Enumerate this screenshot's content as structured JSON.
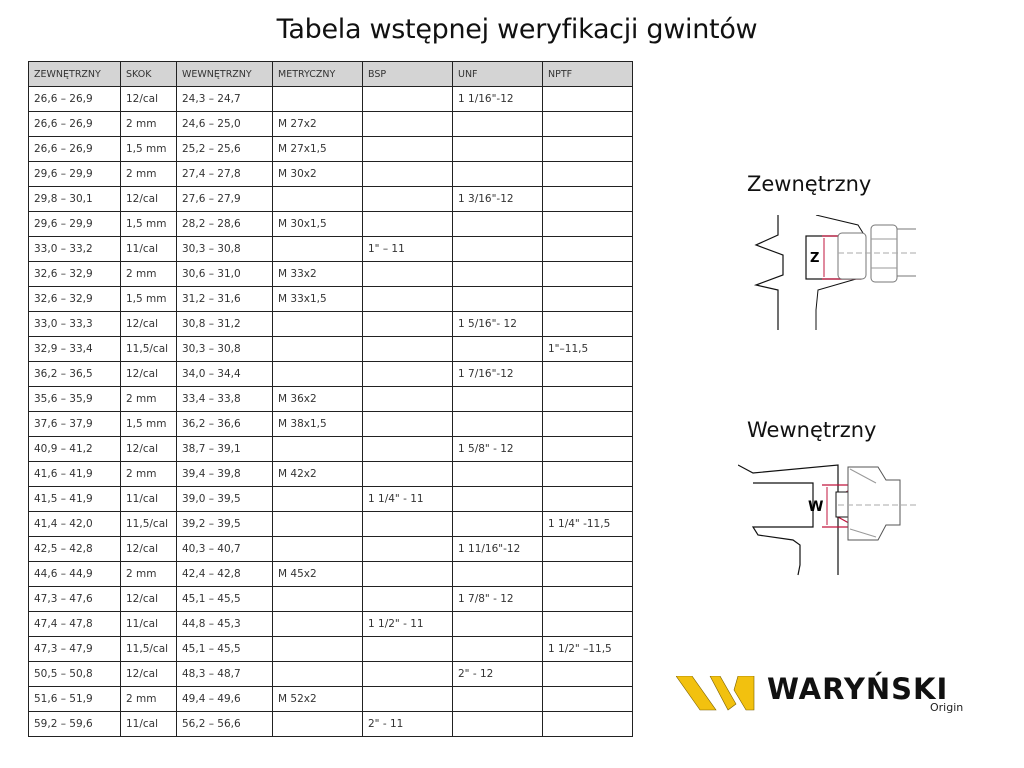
{
  "title": "Tabela wstępnej weryfikacji gwintów",
  "table": {
    "headers": [
      "ZEWNĘTRZNY",
      "SKOK",
      "WEWNĘTRZNY",
      "METRYCZNY",
      "BSP",
      "UNF",
      "NPTF"
    ],
    "rows": [
      [
        "26,6 – 26,9",
        "12/cal",
        "24,3 – 24,7",
        "",
        "",
        "1 1/16\"-12",
        ""
      ],
      [
        "26,6 – 26,9",
        "2 mm",
        "24,6 – 25,0",
        "M 27x2",
        "",
        "",
        ""
      ],
      [
        "26,6 – 26,9",
        "1,5 mm",
        "25,2 – 25,6",
        "M 27x1,5",
        "",
        "",
        ""
      ],
      [
        "29,6 – 29,9",
        "2 mm",
        "27,4 – 27,8",
        "M 30x2",
        "",
        "",
        ""
      ],
      [
        "29,8 – 30,1",
        "12/cal",
        "27,6 – 27,9",
        "",
        "",
        "1 3/16\"-12",
        ""
      ],
      [
        "29,6 – 29,9",
        "1,5 mm",
        "28,2 – 28,6",
        "M 30x1,5",
        "",
        "",
        ""
      ],
      [
        "33,0 – 33,2",
        "11/cal",
        "30,3 – 30,8",
        "",
        "1\" – 11",
        "",
        ""
      ],
      [
        "32,6 – 32,9",
        "2 mm",
        "30,6 – 31,0",
        "M 33x2",
        "",
        "",
        ""
      ],
      [
        "32,6 – 32,9",
        "1,5 mm",
        "31,2 – 31,6",
        "M 33x1,5",
        "",
        "",
        ""
      ],
      [
        "33,0 – 33,3",
        "12/cal",
        "30,8 – 31,2",
        "",
        "",
        "1 5/16\"- 12",
        ""
      ],
      [
        "32,9 – 33,4",
        "11,5/cal",
        "30,3 – 30,8",
        "",
        "",
        "",
        "1\"–11,5"
      ],
      [
        "36,2 – 36,5",
        "12/cal",
        "34,0 – 34,4",
        "",
        "",
        "1 7/16\"-12",
        ""
      ],
      [
        "35,6 – 35,9",
        "2 mm",
        "33,4 – 33,8",
        "M 36x2",
        "",
        "",
        ""
      ],
      [
        "37,6 – 37,9",
        "1,5 mm",
        "36,2 – 36,6",
        "M 38x1,5",
        "",
        "",
        ""
      ],
      [
        "40,9 – 41,2",
        "12/cal",
        "38,7 – 39,1",
        "",
        "",
        "1 5/8\" - 12",
        ""
      ],
      [
        "41,6 – 41,9",
        "2 mm",
        "39,4 – 39,8",
        "M 42x2",
        "",
        "",
        ""
      ],
      [
        "41,5 – 41,9",
        "11/cal",
        "39,0 – 39,5",
        "",
        "1 1/4\" - 11",
        "",
        ""
      ],
      [
        "41,4 – 42,0",
        "11,5/cal",
        "39,2 – 39,5",
        "",
        "",
        "",
        "1 1/4\" -11,5"
      ],
      [
        "42,5 – 42,8",
        "12/cal",
        "40,3 – 40,7",
        "",
        "",
        "1 11/16\"-12",
        ""
      ],
      [
        "44,6 – 44,9",
        "2 mm",
        "42,4 – 42,8",
        "M 45x2",
        "",
        "",
        ""
      ],
      [
        "47,3 – 47,6",
        "12/cal",
        "45,1 – 45,5",
        "",
        "",
        "1 7/8\" - 12",
        ""
      ],
      [
        "47,4 – 47,8",
        "11/cal",
        "44,8 – 45,3",
        "",
        "1 1/2\" - 11",
        "",
        ""
      ],
      [
        "47,3 – 47,9",
        "11,5/cal",
        "45,1 – 45,5",
        "",
        "",
        "",
        "1 1/2\" –11,5"
      ],
      [
        "50,5 – 50,8",
        "12/cal",
        "48,3 – 48,7",
        "",
        "",
        "2\" - 12",
        ""
      ],
      [
        "51,6 – 51,9",
        "2 mm",
        "49,4 – 49,6",
        "M 52x2",
        "",
        "",
        ""
      ],
      [
        "59,2 – 59,6",
        "11/cal",
        "56,2 – 56,6",
        "",
        "2\" - 11",
        "",
        ""
      ]
    ]
  },
  "diagrams": {
    "external": {
      "label": "Zewnętrzny",
      "marker": "Z"
    },
    "internal": {
      "label": "Wewnętrzny",
      "marker": "W"
    }
  },
  "logo": {
    "name": "WARYŃSKI",
    "sub": "Origin",
    "accent": "#f2c10f"
  },
  "colors": {
    "header_bg": "#d4d4d4",
    "measure": "#c0143c"
  }
}
